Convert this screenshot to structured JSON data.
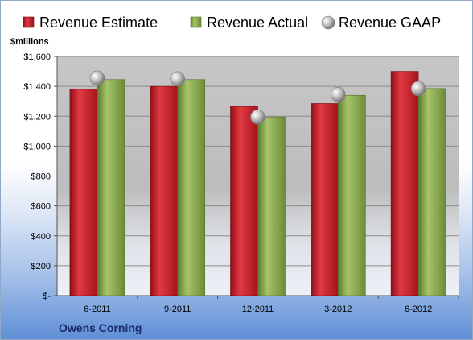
{
  "chart_data": {
    "type": "bar",
    "ylabel": "$millions",
    "footer": "Owens Corning",
    "categories": [
      "6-2011",
      "9-2011",
      "12-2011",
      "3-2012",
      "6-2012"
    ],
    "series": [
      {
        "name": "Revenue Estimate",
        "kind": "bar",
        "color": "#cc1f2a",
        "values": [
          1380,
          1400,
          1265,
          1285,
          1500
        ]
      },
      {
        "name": "Revenue Actual",
        "kind": "bar",
        "color": "#8fb050",
        "values": [
          1445,
          1445,
          1195,
          1340,
          1385
        ]
      },
      {
        "name": "Revenue GAAP",
        "kind": "marker",
        "color": "#b8b8b8",
        "values": [
          1455,
          1450,
          1195,
          1345,
          1385
        ]
      }
    ],
    "ylim": [
      0,
      1600
    ],
    "yticks": [
      0,
      200,
      400,
      600,
      800,
      1000,
      1200,
      1400,
      1600
    ],
    "ytick_labels": [
      "$-",
      "$200",
      "$400",
      "$600",
      "$800",
      "$1,000",
      "$1,200",
      "$1,400",
      "$1,600"
    ],
    "grid": true,
    "legend_position": "top"
  }
}
